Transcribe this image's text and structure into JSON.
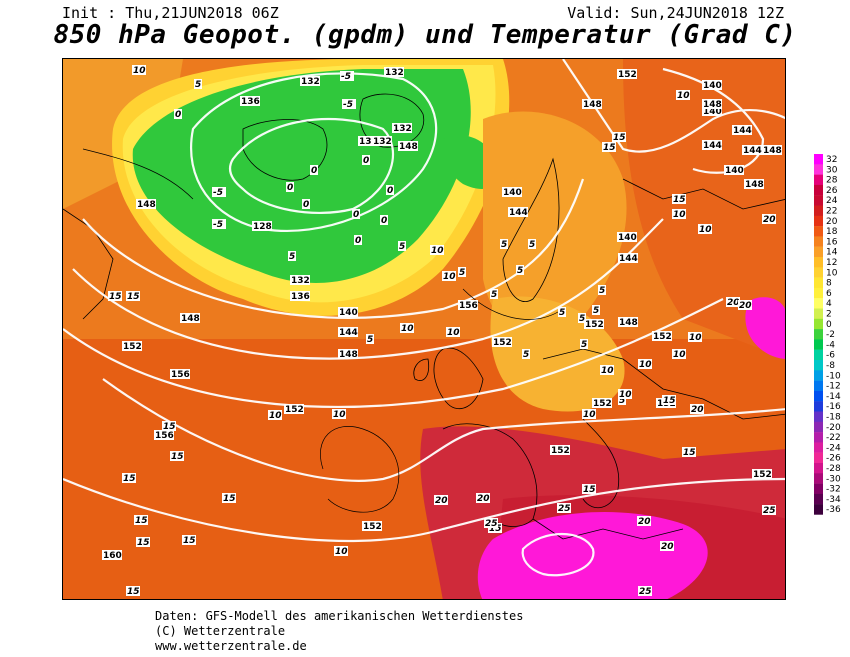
{
  "header": {
    "init": "Init : Thu,21JUN2018 06Z",
    "valid": "Valid: Sun,24JUN2018 12Z",
    "title": "850 hPa Geopot. (gpdm) und Temperatur (Grad C)"
  },
  "footer": {
    "line1": "Daten: GFS-Modell des amerikanischen Wetterdienstes",
    "line2": "(C) Wetterzentrale",
    "line3": "www.wetterzentrale.de"
  },
  "legend": {
    "labels": [
      "32",
      "30",
      "28",
      "26",
      "24",
      "22",
      "20",
      "18",
      "16",
      "14",
      "12",
      "10",
      "8",
      "6",
      "4",
      "2",
      "0",
      "-2",
      "-4",
      "-6",
      "-8",
      "-10",
      "-12",
      "-14",
      "-16",
      "-18",
      "-20",
      "-22",
      "-24",
      "-26",
      "-28",
      "-30",
      "-32",
      "-34",
      "-36"
    ],
    "colors": [
      "#ff00ff",
      "#ff33dd",
      "#e6007a",
      "#c8003c",
      "#c80a32",
      "#d21e1e",
      "#e63214",
      "#f05a14",
      "#f5821e",
      "#faa028",
      "#ffbe28",
      "#ffd232",
      "#ffe632",
      "#fff03c",
      "#ffff64",
      "#d2f050",
      "#96e632",
      "#3cd23c",
      "#00c850",
      "#00d2a0",
      "#00c8c8",
      "#00a0e6",
      "#0078f0",
      "#0050f0",
      "#1e3cdc",
      "#6432c8",
      "#8c28b4",
      "#b41eaa",
      "#dc1ea0",
      "#f02896",
      "#d2148c",
      "#aa0a78",
      "#820064",
      "#5a0050",
      "#3c003c"
    ]
  },
  "map_labels": {
    "geopotential": [
      "132",
      "136",
      "132",
      "136",
      "132",
      "132",
      "132",
      "128",
      "132",
      "136",
      "140",
      "144",
      "148",
      "140",
      "144",
      "144",
      "148",
      "148",
      "152",
      "152",
      "156",
      "156",
      "152",
      "160",
      "152",
      "152",
      "152",
      "152",
      "152",
      "156",
      "148",
      "140",
      "152",
      "148",
      "140",
      "144",
      "144",
      "148",
      "140",
      "144",
      "148",
      "140",
      "148",
      "152",
      "148",
      "152"
    ],
    "temperature": [
      "10",
      "5",
      "0",
      "-5",
      "-5",
      "-5",
      "0",
      "0",
      "0",
      "0",
      "0",
      "5",
      "10",
      "15",
      "15",
      "15",
      "15",
      "15",
      "15",
      "15",
      "15",
      "10",
      "10",
      "10",
      "5",
      "5",
      "5",
      "10",
      "15",
      "20",
      "20",
      "25",
      "25",
      "20",
      "20",
      "25",
      "25",
      "15",
      "10",
      "15",
      "15",
      "20",
      "20",
      "15",
      "20",
      "10",
      "10",
      "15",
      "10",
      "5",
      "5",
      "5",
      "10",
      "15",
      "15",
      "15",
      "20",
      "10",
      "10",
      "10",
      "10",
      "5",
      "5",
      "5",
      "-5",
      "0",
      "0",
      "5",
      "0",
      "5",
      "5",
      "5",
      "5",
      "10",
      "10"
    ]
  },
  "map_colors": {
    "ocean_warm": "#f08c1e",
    "sea_south": "#e66414",
    "land_hot": "#d2283c",
    "cold_green": "#28c83c",
    "cold_yellow": "#ffe632",
    "pink": "#ff14dc",
    "isoline": "#ffffff",
    "coast": "#000000"
  }
}
